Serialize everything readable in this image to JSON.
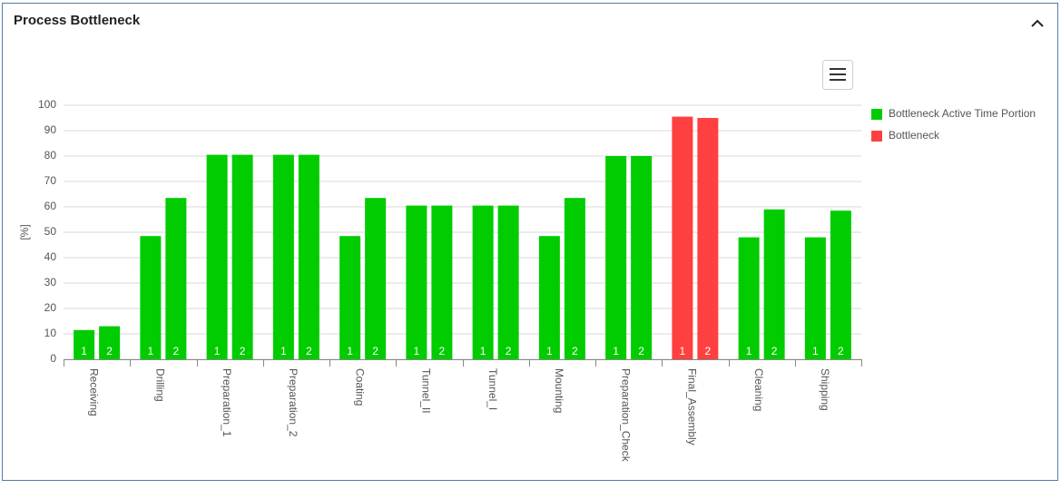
{
  "chart_data": {
    "type": "bar",
    "title": "Process Bottleneck",
    "ylabel": "[%]",
    "categories": [
      "Receiving",
      "Drilling",
      "Preparation_1",
      "Preparation_2",
      "Coating",
      "Tunnel_II",
      "Tunnel_I",
      "Mounting",
      "Preparation_Check",
      "Final_Assembly",
      "Cleaning",
      "Shipping"
    ],
    "series": [
      {
        "label": "1",
        "values": [
          11.5,
          48.5,
          80.5,
          80.5,
          48.5,
          60.5,
          60.5,
          48.5,
          80,
          95.5,
          48,
          48
        ]
      },
      {
        "label": "2",
        "values": [
          13,
          63.5,
          80.5,
          80.5,
          63.5,
          60.5,
          60.5,
          63.5,
          80,
          95,
          59,
          58.5
        ]
      }
    ],
    "bottleneck": [
      false,
      false,
      false,
      false,
      false,
      false,
      false,
      false,
      false,
      true,
      false,
      false
    ],
    "legend": [
      {
        "name": "Bottleneck Active Time Portion",
        "color": "#00cc00"
      },
      {
        "name": "Bottleneck",
        "color": "#ff4040"
      }
    ],
    "ylim": [
      0,
      100
    ],
    "yticks": [
      0,
      10,
      20,
      30,
      40,
      50,
      60,
      70,
      80,
      90,
      100
    ],
    "grid": true
  }
}
